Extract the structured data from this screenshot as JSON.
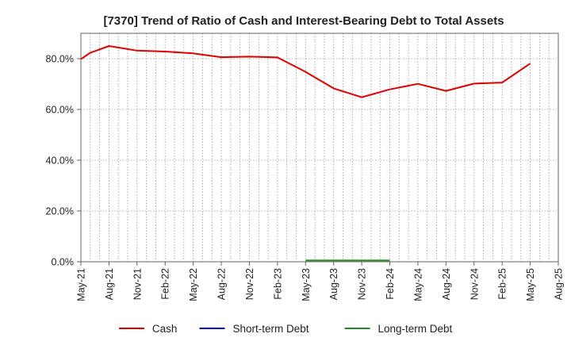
{
  "chart_data": {
    "type": "line",
    "title": "[7370]  Trend of Ratio of Cash and Interest-Bearing Debt to Total Assets",
    "xlabel": "",
    "ylabel": "",
    "ylim": [
      0,
      90
    ],
    "y_ticks": [
      0,
      20,
      40,
      60,
      80
    ],
    "y_tick_labels": [
      "0.0%",
      "20.0%",
      "40.0%",
      "60.0%",
      "80.0%"
    ],
    "x_tick_labels": [
      "May-21",
      "Aug-21",
      "Nov-21",
      "Feb-22",
      "May-22",
      "Aug-22",
      "Nov-22",
      "Feb-23",
      "May-23",
      "Aug-23",
      "Nov-23",
      "Feb-24",
      "May-24",
      "Aug-24",
      "Nov-24",
      "Feb-25",
      "May-25",
      "Aug-25"
    ],
    "grid": true,
    "legend_position": "bottom",
    "series": [
      {
        "name": "Cash",
        "color": "#e00000",
        "x": [
          0,
          1,
          3,
          6,
          9,
          12,
          15,
          18,
          21,
          24,
          27,
          30,
          33,
          36,
          39,
          42,
          45,
          48
        ],
        "values": [
          79.8,
          82.3,
          85.0,
          83.2,
          82.8,
          82.1,
          80.6,
          80.8,
          80.5,
          74.8,
          68.3,
          64.8,
          67.9,
          70.1,
          67.3,
          70.2,
          70.6,
          78.1
        ]
      },
      {
        "name": "Short-term Debt",
        "color": "#0000cc",
        "x": [],
        "values": []
      },
      {
        "name": "Long-term Debt",
        "color": "#228b22",
        "x": [
          24,
          27,
          30,
          33
        ],
        "values": [
          0.5,
          0.5,
          0.5,
          0.5
        ]
      }
    ]
  }
}
